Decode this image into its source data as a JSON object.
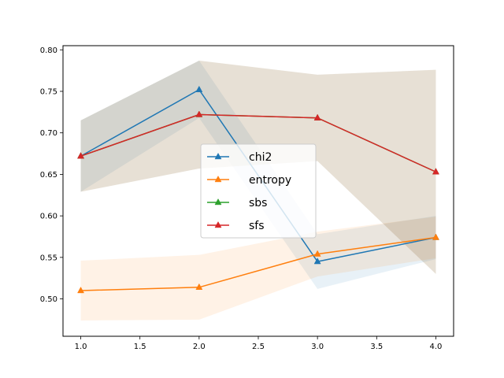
{
  "chart_data": {
    "type": "line",
    "title": "",
    "xlabel": "",
    "ylabel": "",
    "xlim": [
      0.85,
      4.15
    ],
    "ylim": [
      0.455,
      0.805
    ],
    "xticks": [
      1.0,
      1.5,
      2.0,
      2.5,
      3.0,
      3.5,
      4.0
    ],
    "xtick_labels": [
      "1.0",
      "1.5",
      "2.0",
      "2.5",
      "3.0",
      "3.5",
      "4.0"
    ],
    "yticks": [
      0.5,
      0.55,
      0.6,
      0.65,
      0.7,
      0.75,
      0.8
    ],
    "ytick_labels": [
      "0.50",
      "0.55",
      "0.60",
      "0.65",
      "0.70",
      "0.75",
      "0.80"
    ],
    "grid": false,
    "legend_position": "center",
    "x": [
      1,
      2,
      3,
      4
    ],
    "series": [
      {
        "name": "chi2",
        "color": "#1f77b4",
        "marker": "triangle",
        "values": [
          0.672,
          0.752,
          0.545,
          0.574
        ],
        "lower": [
          0.629,
          0.718,
          0.512,
          0.548
        ],
        "upper": [
          0.715,
          0.787,
          0.578,
          0.6
        ]
      },
      {
        "name": "entropy",
        "color": "#ff7f0e",
        "marker": "triangle",
        "values": [
          0.51,
          0.514,
          0.554,
          0.574
        ],
        "lower": [
          0.474,
          0.475,
          0.527,
          0.549
        ],
        "upper": [
          0.546,
          0.553,
          0.581,
          0.599
        ]
      },
      {
        "name": "sbs",
        "color": "#2ca02c",
        "marker": "triangle",
        "values": [
          0.672,
          0.722,
          0.718,
          0.653
        ],
        "lower": [
          0.629,
          0.657,
          0.666,
          0.53
        ],
        "upper": [
          0.715,
          0.787,
          0.77,
          0.776
        ]
      },
      {
        "name": "sfs",
        "color": "#d62728",
        "marker": "triangle",
        "values": [
          0.672,
          0.722,
          0.718,
          0.653
        ],
        "lower": [
          0.629,
          0.657,
          0.666,
          0.53
        ],
        "upper": [
          0.715,
          0.787,
          0.77,
          0.776
        ]
      }
    ]
  }
}
